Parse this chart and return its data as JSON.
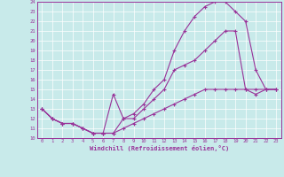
{
  "xlabel": "Windchill (Refroidissement éolien,°C)",
  "bg_color": "#c8eaea",
  "line_color": "#993399",
  "grid_color": "#aacccc",
  "xmin": 0,
  "xmax": 23,
  "ymin": 10,
  "ymax": 24,
  "line1_x": [
    0,
    1,
    2,
    3,
    4,
    5,
    6,
    7,
    8,
    9,
    10,
    11,
    12,
    13,
    14,
    15,
    16,
    17,
    18,
    19,
    20,
    21,
    22,
    23
  ],
  "line1_y": [
    13,
    12,
    11.5,
    11.5,
    11,
    10.5,
    10.5,
    10.5,
    12,
    12,
    13,
    14,
    15,
    17,
    17.5,
    18,
    19,
    20,
    21,
    21,
    15,
    14.5,
    15,
    15
  ],
  "line2_x": [
    0,
    1,
    2,
    3,
    4,
    5,
    6,
    7,
    8,
    9,
    10,
    11,
    12,
    13,
    14,
    15,
    16,
    17,
    18,
    19,
    20,
    21,
    22,
    23
  ],
  "line2_y": [
    13,
    12,
    11.5,
    11.5,
    11,
    10.5,
    10.5,
    14.5,
    12,
    12.5,
    13.5,
    15,
    16,
    19,
    21,
    22.5,
    23.5,
    24,
    24,
    23,
    22,
    17,
    15,
    15
  ],
  "line3_x": [
    0,
    1,
    2,
    3,
    4,
    5,
    6,
    7,
    8,
    9,
    10,
    11,
    12,
    13,
    14,
    15,
    16,
    17,
    18,
    19,
    20,
    21,
    22,
    23
  ],
  "line3_y": [
    13,
    12,
    11.5,
    11.5,
    11,
    10.5,
    10.5,
    10.5,
    11,
    11.5,
    12,
    12.5,
    13,
    13.5,
    14,
    14.5,
    15,
    15,
    15,
    15,
    15,
    15,
    15,
    15
  ]
}
